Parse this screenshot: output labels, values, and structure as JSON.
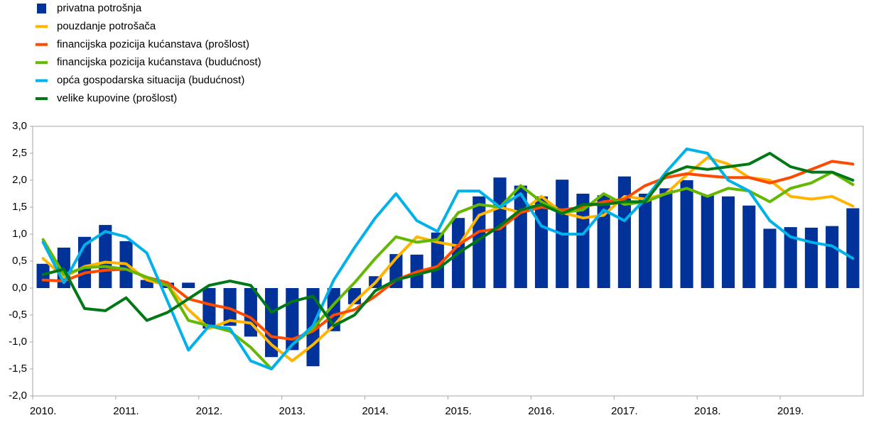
{
  "chart_data": {
    "type": "bar-line",
    "categories": [
      "2010.",
      null,
      null,
      null,
      "2011.",
      null,
      null,
      null,
      "2012.",
      null,
      null,
      null,
      "2013.",
      null,
      null,
      null,
      "2014.",
      null,
      null,
      null,
      "2015.",
      null,
      null,
      null,
      "2016.",
      null,
      null,
      null,
      "2017.",
      null,
      null,
      null,
      "2018.",
      null,
      null,
      null,
      "2019.",
      null,
      null,
      null
    ],
    "ylim": [
      -2.0,
      3.0
    ],
    "yticks": [
      {
        "value": 3.0,
        "label": "3,0"
      },
      {
        "value": 2.5,
        "label": "2,5"
      },
      {
        "value": 2.0,
        "label": "2,0"
      },
      {
        "value": 1.5,
        "label": "1,5"
      },
      {
        "value": 1.0,
        "label": "1,0"
      },
      {
        "value": 0.5,
        "label": "0,5"
      },
      {
        "value": 0.0,
        "label": "0,0"
      },
      {
        "value": -0.5,
        "label": "-0,5"
      },
      {
        "value": -1.0,
        "label": "-1,0"
      },
      {
        "value": -1.5,
        "label": "-1,5"
      },
      {
        "value": -2.0,
        "label": "-2,0"
      }
    ],
    "series": [
      {
        "name": "privatna potrošnja",
        "type": "bar",
        "color": "#003299",
        "values": [
          0.45,
          0.75,
          0.95,
          1.17,
          0.87,
          0.15,
          0.1,
          0.1,
          -0.75,
          -0.7,
          -0.9,
          -1.28,
          -1.15,
          -1.45,
          -0.8,
          -0.3,
          0.22,
          0.63,
          0.62,
          1.03,
          1.3,
          1.7,
          2.05,
          1.9,
          1.7,
          2.01,
          1.75,
          1.72,
          2.07,
          1.75,
          1.85,
          2.0,
          1.73,
          1.7,
          1.53,
          1.1,
          1.13,
          1.12,
          1.15,
          1.48
        ]
      },
      {
        "name": "pouzdanje potrošača",
        "type": "line",
        "color": "#ffb400",
        "values": [
          0.55,
          0.2,
          0.4,
          0.48,
          0.45,
          0.15,
          0.05,
          -0.4,
          -0.75,
          -0.6,
          -0.65,
          -1.05,
          -1.35,
          -1.05,
          -0.7,
          -0.25,
          0.1,
          0.55,
          0.95,
          0.85,
          0.78,
          1.35,
          1.5,
          1.4,
          1.7,
          1.4,
          1.3,
          1.35,
          1.7,
          1.65,
          1.75,
          2.1,
          2.42,
          2.3,
          2.05,
          2.0,
          1.7,
          1.65,
          1.7,
          1.52
        ]
      },
      {
        "name": "financijska pozicija kućanstava (prošlost)",
        "type": "line",
        "color": "#ff4b00",
        "values": [
          0.15,
          0.13,
          0.28,
          0.33,
          0.35,
          0.2,
          0.1,
          -0.2,
          -0.3,
          -0.38,
          -0.55,
          -0.9,
          -0.95,
          -0.8,
          -0.5,
          -0.4,
          -0.15,
          0.15,
          0.3,
          0.4,
          0.8,
          1.05,
          1.1,
          1.4,
          1.5,
          1.45,
          1.5,
          1.6,
          1.65,
          1.9,
          2.05,
          2.12,
          2.08,
          2.05,
          2.05,
          1.95,
          2.05,
          2.2,
          2.35,
          2.3
        ]
      },
      {
        "name": "financijska pozicija kućanstava (budućnost)",
        "type": "line",
        "color": "#65b800",
        "values": [
          0.9,
          0.25,
          0.38,
          0.4,
          0.35,
          0.2,
          0.05,
          -0.6,
          -0.7,
          -0.8,
          -1.1,
          -1.5,
          -1.05,
          -0.75,
          -0.3,
          0.1,
          0.55,
          0.95,
          0.85,
          0.9,
          1.4,
          1.55,
          1.5,
          1.9,
          1.6,
          1.4,
          1.45,
          1.75,
          1.55,
          1.6,
          1.75,
          1.85,
          1.7,
          1.85,
          1.8,
          1.6,
          1.85,
          1.95,
          2.15,
          1.92
        ]
      },
      {
        "name": "opća gospodarska situacija (budućnost)",
        "type": "line",
        "color": "#00b1ea",
        "values": [
          0.85,
          0.1,
          0.8,
          1.05,
          0.95,
          0.65,
          -0.25,
          -1.15,
          -0.7,
          -0.75,
          -1.35,
          -1.5,
          -1.05,
          -0.7,
          0.15,
          0.75,
          1.3,
          1.75,
          1.25,
          1.05,
          1.8,
          1.8,
          1.5,
          1.75,
          1.15,
          1.0,
          1.0,
          1.45,
          1.25,
          1.65,
          2.15,
          2.58,
          2.5,
          2.0,
          1.8,
          1.25,
          0.95,
          0.85,
          0.78,
          0.55
        ]
      },
      {
        "name": "velike kupovine (prošlost)",
        "type": "line",
        "color": "#007816",
        "values": [
          0.25,
          0.35,
          -0.38,
          -0.42,
          -0.18,
          -0.6,
          -0.45,
          -0.2,
          0.05,
          0.13,
          0.05,
          -0.45,
          -0.25,
          -0.15,
          -0.7,
          -0.5,
          -0.05,
          0.15,
          0.25,
          0.35,
          0.65,
          0.9,
          1.15,
          1.45,
          1.55,
          1.38,
          1.55,
          1.55,
          1.6,
          1.6,
          2.1,
          2.25,
          2.2,
          2.25,
          2.3,
          2.5,
          2.25,
          2.15,
          2.15,
          2.0
        ]
      }
    ]
  }
}
